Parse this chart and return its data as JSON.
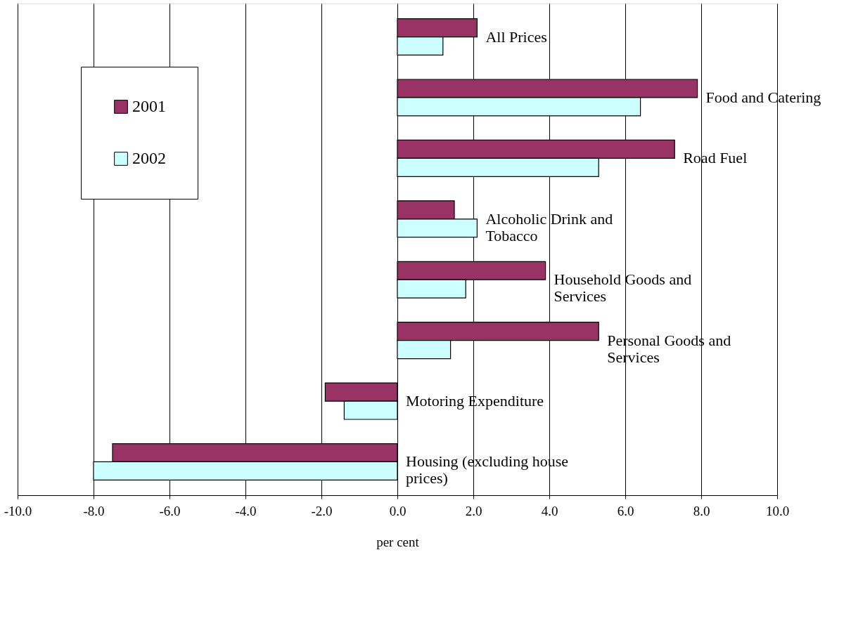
{
  "chart_data": {
    "type": "bar",
    "orientation": "horizontal",
    "xlabel": "per cent",
    "categories": [
      "All Prices",
      "Food and Catering",
      "Road Fuel",
      "Alcoholic Drink and Tobacco",
      "Household Goods and Services",
      "Personal Goods and Services",
      "Motoring Expenditure",
      "Housing (excluding house prices)"
    ],
    "series": [
      {
        "name": "2001",
        "color": "#993366",
        "values": [
          2.1,
          7.9,
          7.3,
          1.5,
          3.9,
          5.3,
          -1.9,
          -7.5
        ]
      },
      {
        "name": "2002",
        "color": "#ccffff",
        "values": [
          1.2,
          6.4,
          5.3,
          2.1,
          1.8,
          1.4,
          -1.4,
          -8.0
        ]
      }
    ],
    "xlim": [
      -10,
      10
    ],
    "xticks": [
      {
        "value": -10,
        "label": "-10.0"
      },
      {
        "value": -8,
        "label": "-8.0"
      },
      {
        "value": -6,
        "label": "-6.0"
      },
      {
        "value": -4,
        "label": "-4.0"
      },
      {
        "value": -2,
        "label": "-2.0"
      },
      {
        "value": 0,
        "label": "0.0"
      },
      {
        "value": 2,
        "label": "2.0"
      },
      {
        "value": 4,
        "label": "4.0"
      },
      {
        "value": 6,
        "label": "6.0"
      },
      {
        "value": 8,
        "label": "8.0"
      },
      {
        "value": 10,
        "label": "10.0"
      }
    ],
    "grid": "x",
    "legend": "top left"
  }
}
